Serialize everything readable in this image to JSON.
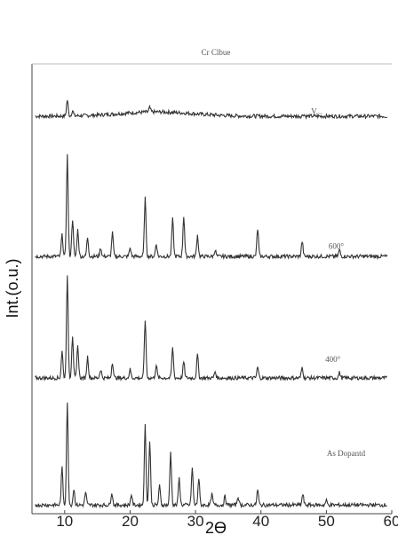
{
  "chart_data": {
    "type": "line",
    "title": "Cr Clbue",
    "xlabel": "2ϴ",
    "ylabel": "Int.(o.u.)",
    "xlim": [
      5,
      60
    ],
    "xticks": [
      10,
      20,
      30,
      40,
      50,
      60
    ],
    "grid": false,
    "series": [
      {
        "name": "V...",
        "offset": 3,
        "base": 0.2,
        "peaks": [
          [
            10.4,
            0.15
          ],
          [
            11.2,
            0.05
          ],
          [
            23,
            0.04
          ],
          [
            46.5,
            0.02
          ]
        ]
      },
      {
        "name": "600°",
        "offset": 2,
        "base": 0.05,
        "peaks": [
          [
            9.6,
            0.2
          ],
          [
            10.4,
            0.95
          ],
          [
            11.2,
            0.35
          ],
          [
            12,
            0.25
          ],
          [
            13.5,
            0.18
          ],
          [
            15.5,
            0.08
          ],
          [
            17.3,
            0.22
          ],
          [
            20,
            0.08
          ],
          [
            22.3,
            0.55
          ],
          [
            24,
            0.12
          ],
          [
            26.5,
            0.35
          ],
          [
            28.2,
            0.38
          ],
          [
            30.3,
            0.2
          ],
          [
            33,
            0.06
          ],
          [
            39.5,
            0.26
          ],
          [
            46.3,
            0.14
          ],
          [
            52,
            0.06
          ]
        ]
      },
      {
        "name": "400°",
        "offset": 1,
        "base": 0.05,
        "peaks": [
          [
            9.6,
            0.25
          ],
          [
            10.4,
            0.95
          ],
          [
            11.2,
            0.4
          ],
          [
            12,
            0.3
          ],
          [
            13.5,
            0.2
          ],
          [
            15.5,
            0.08
          ],
          [
            17.3,
            0.15
          ],
          [
            20,
            0.08
          ],
          [
            22.3,
            0.55
          ],
          [
            24,
            0.12
          ],
          [
            26.5,
            0.28
          ],
          [
            28.2,
            0.15
          ],
          [
            30.3,
            0.22
          ],
          [
            33,
            0.06
          ],
          [
            39.5,
            0.1
          ],
          [
            46.3,
            0.1
          ],
          [
            52,
            0.05
          ]
        ]
      },
      {
        "name": "As Dopantd",
        "offset": 0,
        "base": 0.04,
        "peaks": [
          [
            9.6,
            0.35
          ],
          [
            10.4,
            0.95
          ],
          [
            11.4,
            0.15
          ],
          [
            13.2,
            0.12
          ],
          [
            17.2,
            0.12
          ],
          [
            20.2,
            0.1
          ],
          [
            22.3,
            0.75
          ],
          [
            23,
            0.6
          ],
          [
            24.5,
            0.18
          ],
          [
            26.2,
            0.5
          ],
          [
            27.5,
            0.25
          ],
          [
            29.5,
            0.35
          ],
          [
            30.5,
            0.25
          ],
          [
            32.5,
            0.1
          ],
          [
            34.5,
            0.08
          ],
          [
            36.5,
            0.08
          ],
          [
            39.5,
            0.14
          ],
          [
            46.4,
            0.1
          ],
          [
            50,
            0.04
          ]
        ]
      }
    ]
  }
}
